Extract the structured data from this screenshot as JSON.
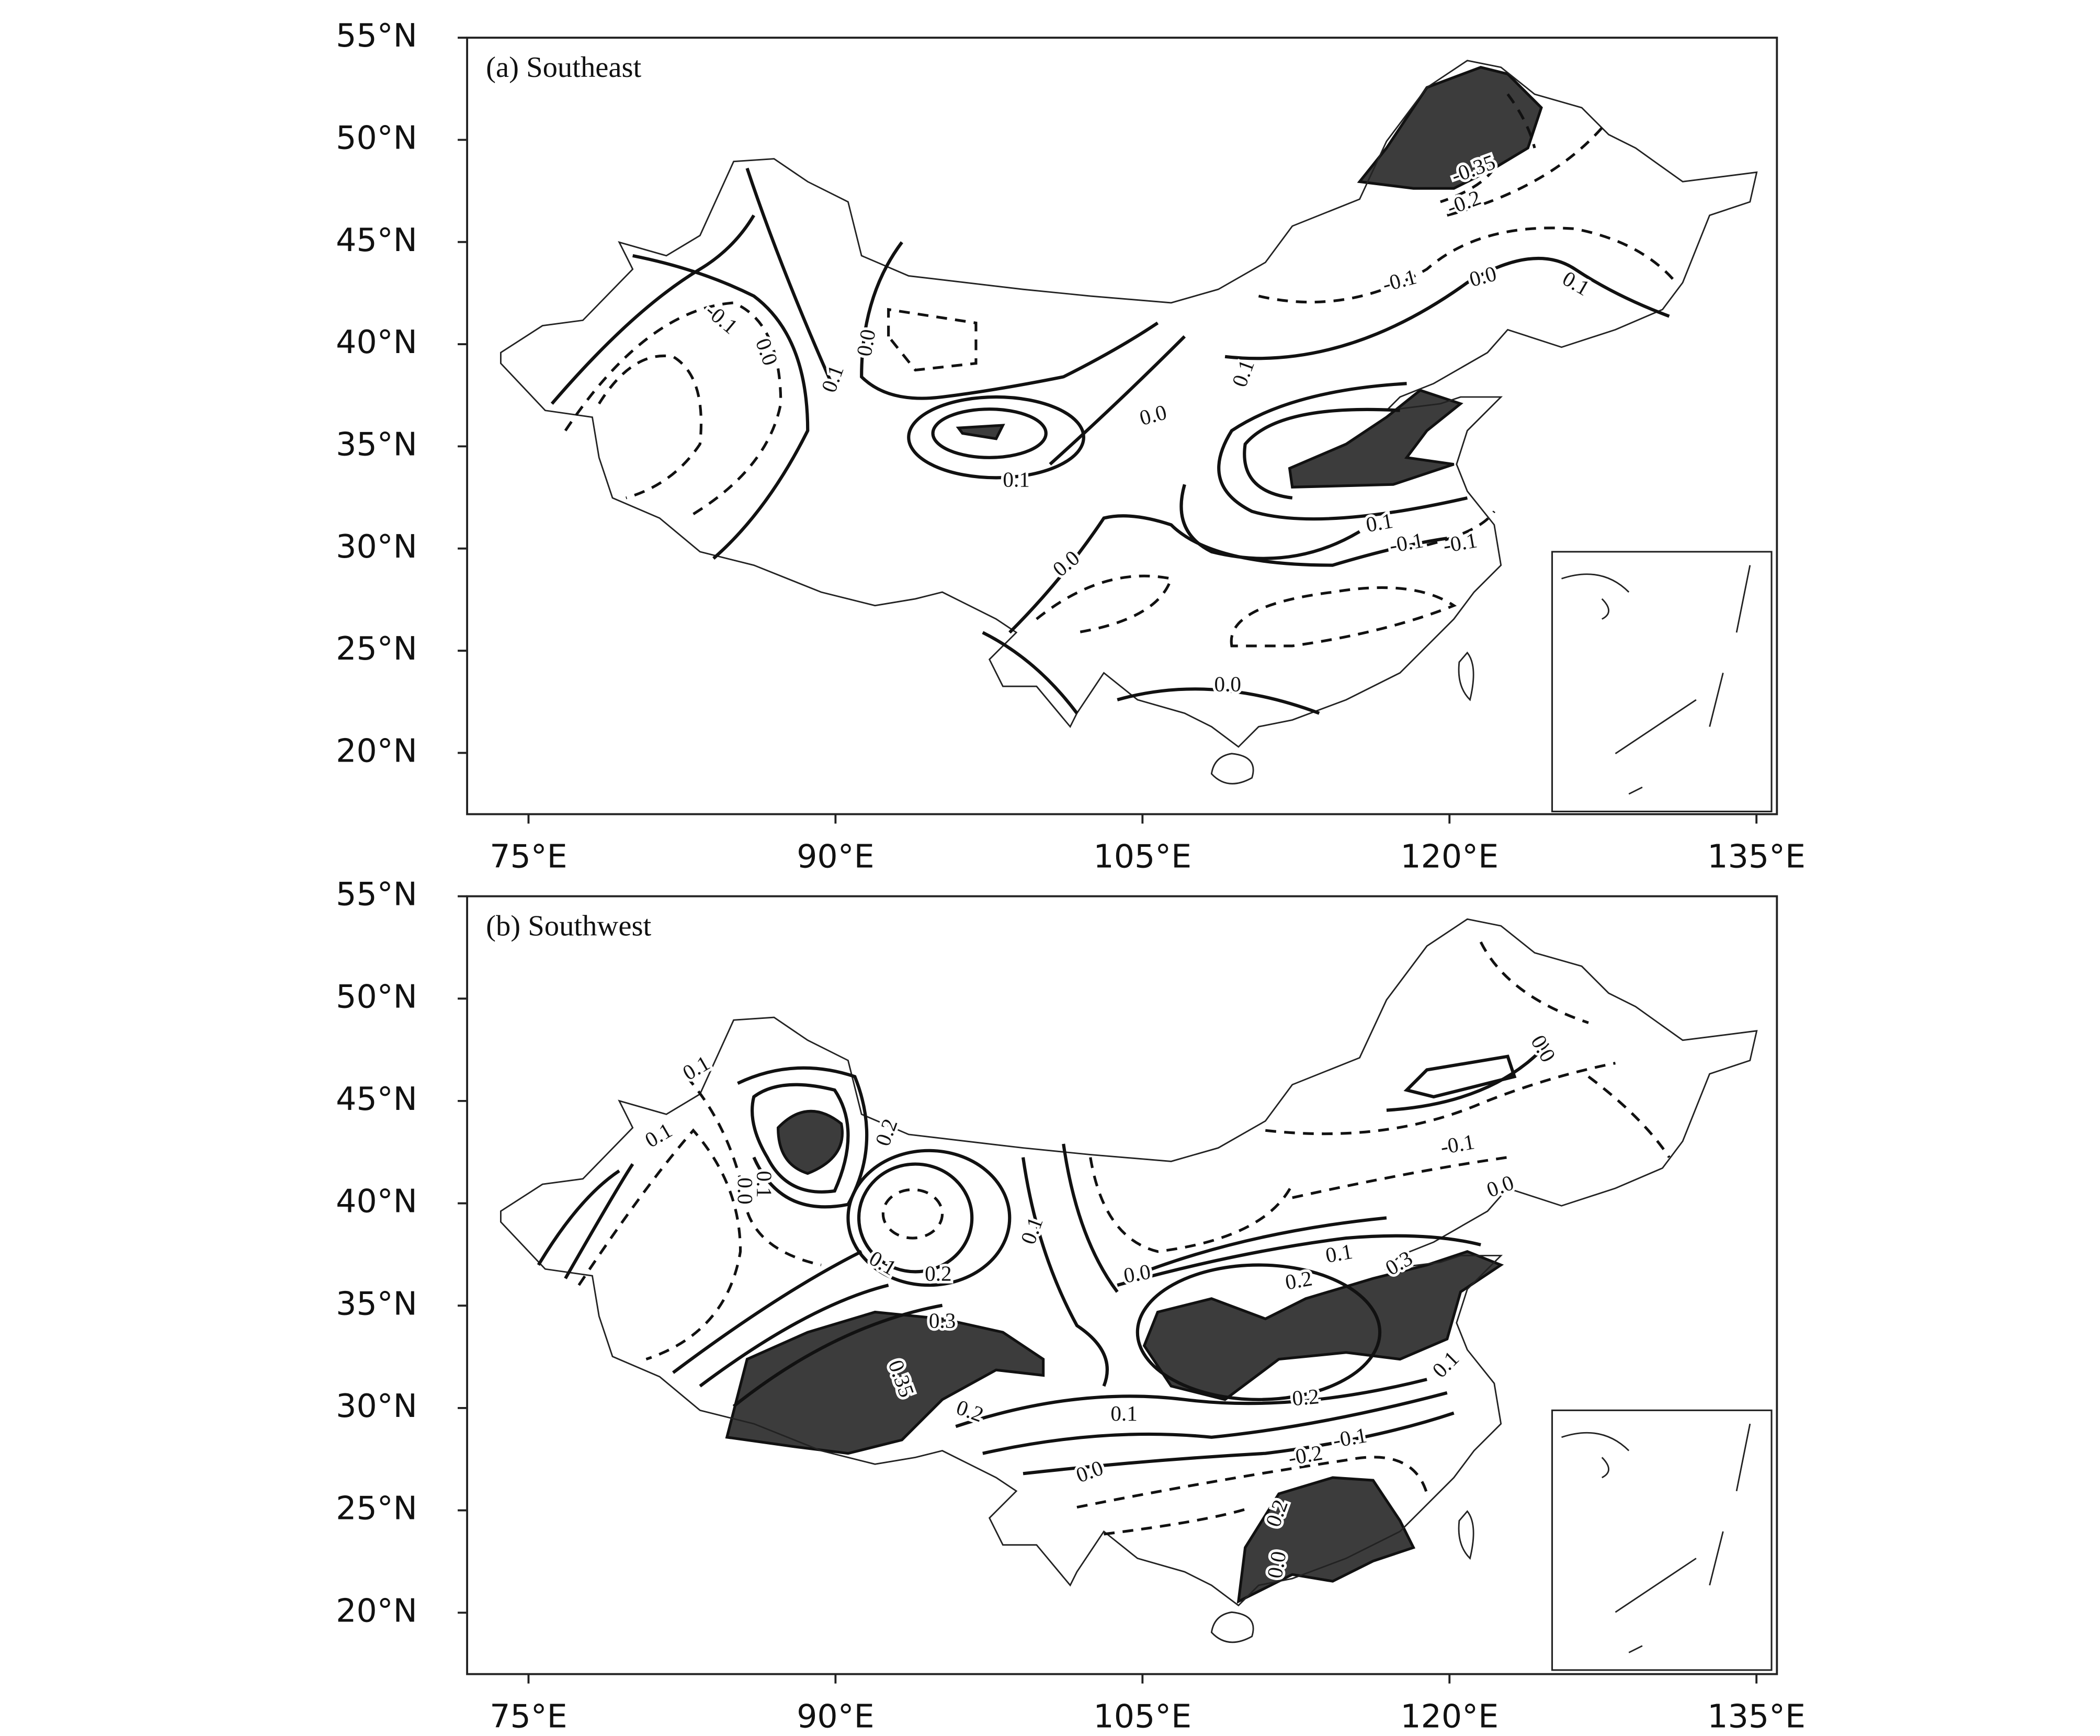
{
  "panels": [
    {
      "title": "(a)  Southeast",
      "xlim": [
        72,
        136
      ],
      "ylim": [
        17,
        55
      ],
      "xticks": [
        {
          "value": 75,
          "label": "75°E"
        },
        {
          "value": 90,
          "label": "90°E"
        },
        {
          "value": 105,
          "label": "105°E"
        },
        {
          "value": 120,
          "label": "120°E"
        },
        {
          "value": 135,
          "label": "135°E"
        }
      ],
      "yticks": [
        {
          "value": 20,
          "label": "20°N"
        },
        {
          "value": 25,
          "label": "25°N"
        },
        {
          "value": 30,
          "label": "30°N"
        },
        {
          "value": 35,
          "label": "35°N"
        },
        {
          "value": 40,
          "label": "40°N"
        },
        {
          "value": 45,
          "label": "45°N"
        },
        {
          "value": 50,
          "label": "50°N"
        },
        {
          "value": 55,
          "label": "55°N"
        }
      ],
      "contour_labels": [
        "-0.35",
        "-0.2",
        "-0.1",
        "0.0",
        "0.1",
        "-0.1",
        "0.0",
        "0.1",
        "0.0",
        "0.1",
        "0.0",
        "0.1",
        "0.1",
        "-0.1",
        "-0.1",
        "0.0",
        "0.0"
      ]
    },
    {
      "title": "(b)  Southwest",
      "xlim": [
        72,
        136
      ],
      "ylim": [
        17,
        55
      ],
      "xticks": [
        {
          "value": 75,
          "label": "75°E"
        },
        {
          "value": 90,
          "label": "90°E"
        },
        {
          "value": 105,
          "label": "105°E"
        },
        {
          "value": 120,
          "label": "120°E"
        },
        {
          "value": 135,
          "label": "135°E"
        }
      ],
      "yticks": [
        {
          "value": 20,
          "label": "20°N"
        },
        {
          "value": 25,
          "label": "25°N"
        },
        {
          "value": 30,
          "label": "30°N"
        },
        {
          "value": 35,
          "label": "35°N"
        },
        {
          "value": 40,
          "label": "40°N"
        },
        {
          "value": 45,
          "label": "45°N"
        },
        {
          "value": 50,
          "label": "50°N"
        },
        {
          "value": 55,
          "label": "55°N"
        }
      ],
      "contour_labels": [
        "0.1",
        "0.1",
        "0.2",
        "0.0",
        "0.1",
        "0.1",
        "0.2",
        "0.1",
        "0.3",
        "0.35",
        "0.2",
        "0.0",
        "0.2",
        "0.1",
        "0.3",
        "0.0",
        "-0.1",
        "0.0",
        "0.1",
        "0.2",
        "0.1",
        "0.0",
        "-0.2",
        "-0.1",
        "0.2",
        "0.0"
      ]
    }
  ]
}
